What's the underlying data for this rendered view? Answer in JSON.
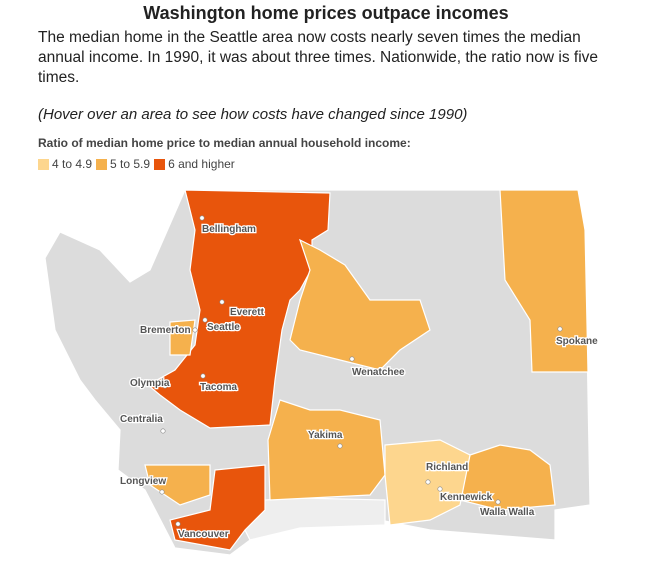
{
  "header": {
    "title": "Washington home prices outpace incomes",
    "description": "The median home in the Seattle area now costs nearly seven times the median annual income. In 1990, it was about three times. Nationwide, the ratio now is five times.",
    "hover_note": "(Hover over an area to see how costs have changed since 1990)"
  },
  "legend": {
    "title": "Ratio of median home price to median annual household income:",
    "items": [
      {
        "label": "4 to 4.9",
        "color": "#fdd68e"
      },
      {
        "label": "5 to 5.9",
        "color": "#f5b14d"
      },
      {
        "label": "6 and higher",
        "color": "#e8550c"
      }
    ]
  },
  "cities": [
    "Bellingham",
    "Everett",
    "Seattle",
    "Bremerton",
    "Olympia",
    "Tacoma",
    "Centralia",
    "Wenatchee",
    "Yakima",
    "Spokane",
    "Richland",
    "Kennewick",
    "Walla Walla",
    "Longview",
    "Vancouver"
  ]
}
